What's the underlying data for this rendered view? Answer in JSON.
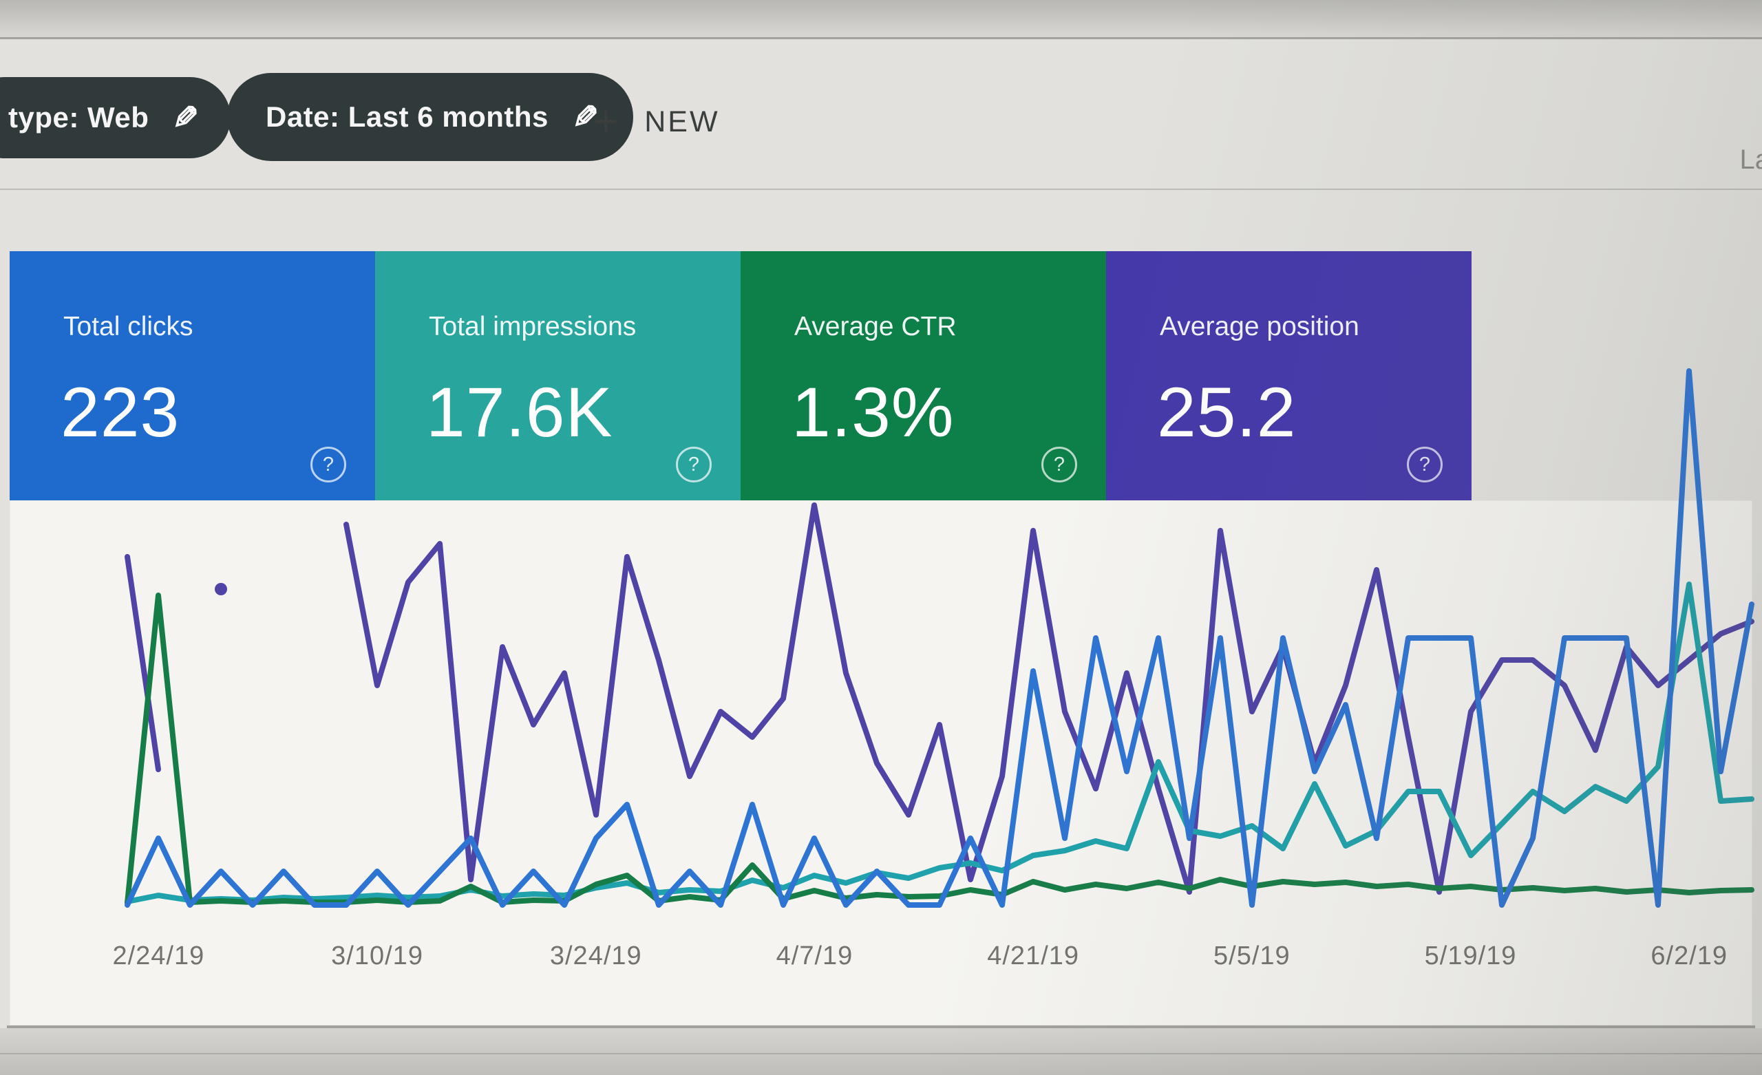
{
  "header": {
    "search_type_chip": "type: Web",
    "date_chip": "Date: Last 6 months",
    "pencil_icon": "✎",
    "plus_icon": "+",
    "new_button": "NEW",
    "partial_right_text": "La"
  },
  "cards": [
    {
      "label": "Total clicks",
      "value": "223",
      "color": "#1e6bcd",
      "help_icon": "?"
    },
    {
      "label": "Total impressions",
      "value": "17.6K",
      "color": "#28a59d",
      "help_icon": "?"
    },
    {
      "label": "Average CTR",
      "value": "1.3%",
      "color": "#0d7f49",
      "help_icon": "?"
    },
    {
      "label": "Average position",
      "value": "25.2",
      "color": "#4539aa",
      "help_icon": "?"
    }
  ],
  "chart_data": {
    "type": "line",
    "title": "",
    "xlabel": "",
    "ylabel": "",
    "grid": false,
    "legend_position": "none",
    "x_start_date": "2/24/19",
    "point_interval_days": 2,
    "x_tick_labels": [
      "2/24/19",
      "3/10/19",
      "3/24/19",
      "4/7/19",
      "4/21/19",
      "5/5/19",
      "5/19/19",
      "6/2/19"
    ],
    "x_tick_sample_indices": [
      1,
      8,
      15,
      22,
      29,
      36,
      43,
      50
    ],
    "series": [
      {
        "name": "Clicks",
        "unit": "clicks",
        "color": "#2e74d2",
        "ylim": [
          0,
          17
        ],
        "values": [
          0,
          2,
          0,
          1,
          0,
          1,
          0,
          0,
          1,
          0,
          1,
          2,
          0,
          1,
          0,
          2,
          3,
          0,
          1,
          0,
          3,
          0,
          2,
          0,
          1,
          0,
          0,
          2,
          0,
          7,
          2,
          8,
          4,
          8,
          2,
          8,
          0,
          8,
          4,
          6,
          2,
          8,
          8,
          8,
          0,
          2,
          8,
          8,
          8,
          0,
          16,
          4,
          9
        ]
      },
      {
        "name": "Impressions",
        "unit": "impressions",
        "color": "#1fa2ab",
        "ylim": [
          0,
          2300
        ],
        "values": [
          15,
          40,
          20,
          25,
          20,
          30,
          25,
          30,
          40,
          30,
          35,
          60,
          35,
          45,
          40,
          70,
          90,
          50,
          60,
          55,
          100,
          70,
          120,
          90,
          130,
          110,
          150,
          170,
          140,
          200,
          220,
          260,
          230,
          580,
          300,
          280,
          320,
          230,
          490,
          240,
          300,
          460,
          460,
          200,
          330,
          460,
          380,
          480,
          420,
          560,
          1300,
          420,
          430
        ]
      },
      {
        "name": "CTR",
        "unit": "percent",
        "color": "#177d48",
        "ylim": [
          0,
          55
        ],
        "values": [
          0.2,
          30,
          0.3,
          0.4,
          0.3,
          0.4,
          0.3,
          0.3,
          0.5,
          0.3,
          0.4,
          1.8,
          0.3,
          0.5,
          0.4,
          2.0,
          2.9,
          0.4,
          0.8,
          0.5,
          3.9,
          0.6,
          1.4,
          0.7,
          1.0,
          0.8,
          0.9,
          1.5,
          1.0,
          2.3,
          1.5,
          2.0,
          1.6,
          2.2,
          1.6,
          2.5,
          1.8,
          2.3,
          2.0,
          2.2,
          1.8,
          2.0,
          1.6,
          1.8,
          1.5,
          1.7,
          1.4,
          1.6,
          1.3,
          1.5,
          1.2,
          1.4,
          1.5
        ]
      },
      {
        "name": "Position",
        "unit": "position",
        "color": "#4f43a6",
        "ylim": [
          45,
          1
        ],
        "inverted_axis": true,
        "values": [
          18,
          34.5,
          null,
          20.5,
          null,
          null,
          null,
          15.5,
          28,
          20,
          17,
          43,
          25,
          31,
          27,
          38,
          18,
          26,
          35,
          30,
          32,
          29,
          14,
          27,
          34,
          38,
          31,
          43,
          35,
          16,
          30,
          36,
          27,
          36,
          44,
          16,
          30,
          25,
          34,
          28,
          19,
          32,
          44,
          30,
          26,
          26,
          28,
          33,
          25,
          28,
          26,
          24,
          23
        ]
      }
    ]
  }
}
